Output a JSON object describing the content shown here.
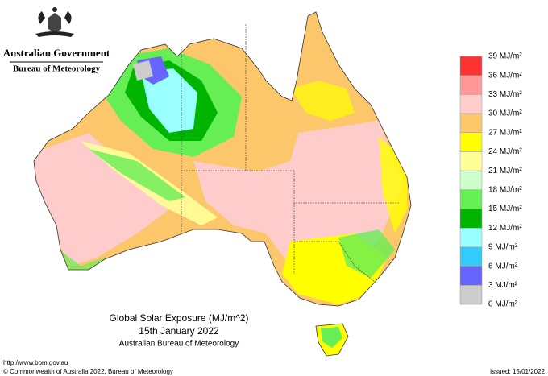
{
  "header": {
    "agency": "Australian Government",
    "bureau": "Bureau of Meteorology"
  },
  "title": {
    "line1": "Global Solar Exposure (MJ/m^2)",
    "line2": "15th January 2022",
    "line3": "Australian Bureau of Meteorology"
  },
  "legend": {
    "labels": [
      "39 MJ/m²",
      "36 MJ/m²",
      "33 MJ/m²",
      "30 MJ/m²",
      "27 MJ/m²",
      "24 MJ/m²",
      "21 MJ/m²",
      "18 MJ/m²",
      "15 MJ/m²",
      "12 MJ/m²",
      "9 MJ/m²",
      "6 MJ/m²",
      "3 MJ/m²",
      "0 MJ/m²"
    ],
    "colors": [
      "#ff3333",
      "#ff9999",
      "#ffcccc",
      "#fcc76a",
      "#ffff00",
      "#ffff99",
      "#ccffcc",
      "#66ee55",
      "#00b400",
      "#99ffff",
      "#33ccff",
      "#6666ff",
      "#cccccc"
    ]
  },
  "footer": {
    "url": "http://www.bom.gov.au",
    "copyright": "© Commonwealth of Australia 2022, Bureau of Meteorology",
    "issued": "Issued: 15/01/2022"
  }
}
